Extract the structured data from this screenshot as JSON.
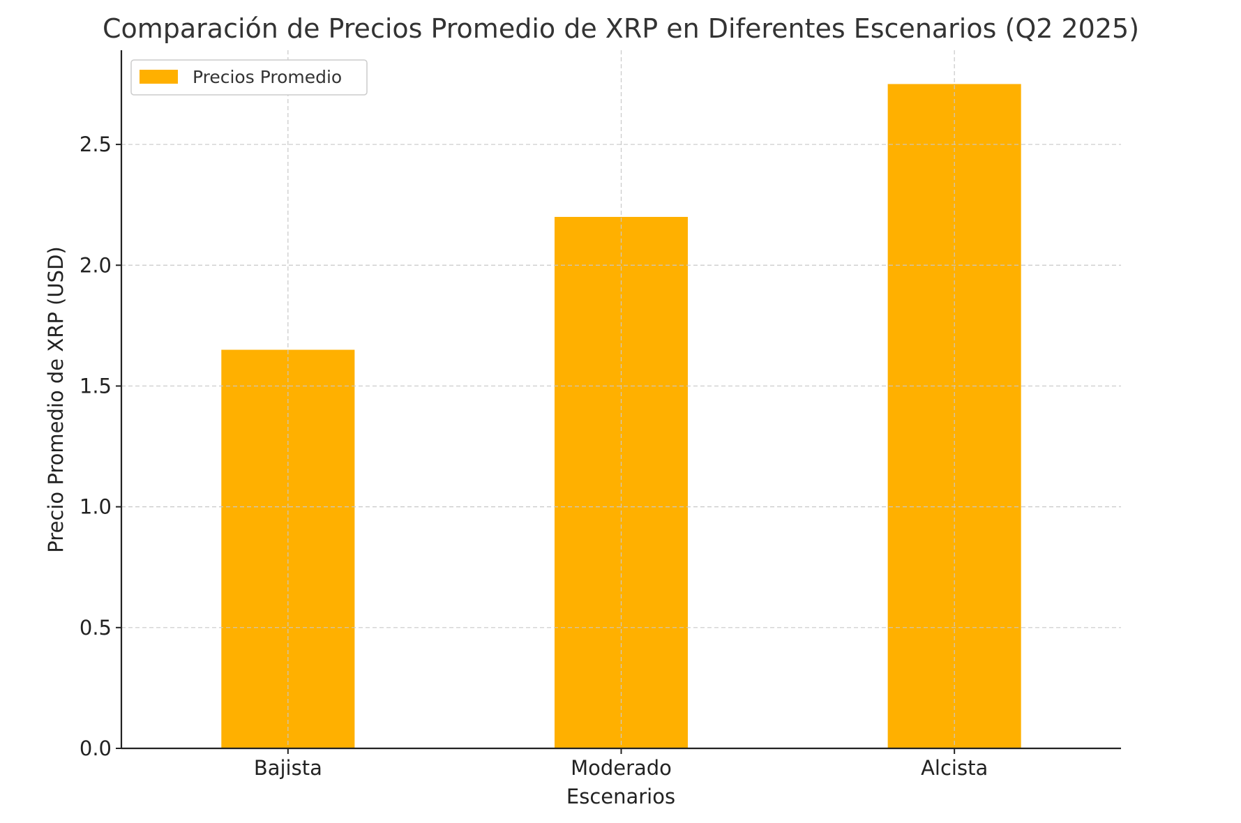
{
  "chart_data": {
    "type": "bar",
    "title": "Comparación de Precios Promedio de XRP en Diferentes Escenarios (Q2 2025)",
    "xlabel": "Escenarios",
    "ylabel": "Precio Promedio de XRP (USD)",
    "categories": [
      "Bajista",
      "Moderado",
      "Alcista"
    ],
    "series": [
      {
        "name": "Precios Promedio",
        "values": [
          1.65,
          2.2,
          2.75
        ],
        "color": "#FFB000"
      }
    ],
    "ylim": [
      0,
      2.89
    ],
    "yticks": [
      "0.0",
      "0.5",
      "1.0",
      "1.5",
      "2.0",
      "2.5"
    ],
    "grid": true,
    "legend_position": "top-left"
  }
}
